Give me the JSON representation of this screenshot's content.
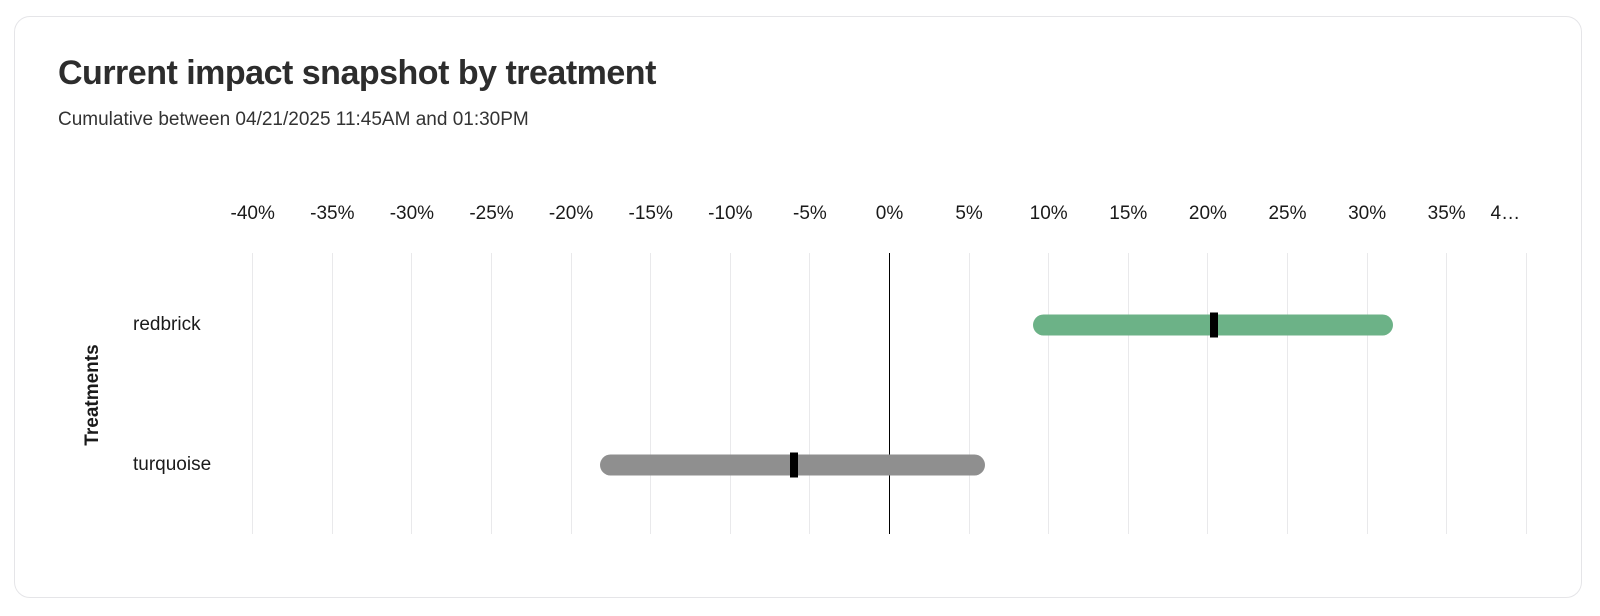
{
  "chart_data": {
    "type": "range_bar",
    "orientation": "horizontal",
    "title": "Current impact snapshot by treatment",
    "subtitle": "Cumulative between 04/21/2025 11:45AM and 01:30PM",
    "ylabel": "Treatments",
    "grid": true,
    "legend": "none",
    "categories": [
      "redbrick",
      "turquoise"
    ],
    "series": [
      {
        "name": "redbrick",
        "low": 9.0,
        "mid": 20.4,
        "high": 31.6,
        "color": "#6cb287",
        "unit": "%"
      },
      {
        "name": "turquoise",
        "low": -18.2,
        "mid": -6.0,
        "high": 6.0,
        "color": "#8f8f8f",
        "unit": "%"
      }
    ],
    "marker_color": "#000000",
    "x_axis": {
      "min": -40,
      "max": 40,
      "tick_step": 5,
      "unit": "%",
      "gridline_color": "#e9e9eb",
      "zero_line_color": "#000000",
      "ticks": [
        {
          "value": -40,
          "label": "-40%"
        },
        {
          "value": -35,
          "label": "-35%"
        },
        {
          "value": -30,
          "label": "-30%"
        },
        {
          "value": -25,
          "label": "-25%"
        },
        {
          "value": -20,
          "label": "-20%"
        },
        {
          "value": -15,
          "label": "-15%"
        },
        {
          "value": -10,
          "label": "-10%"
        },
        {
          "value": -5,
          "label": "-5%"
        },
        {
          "value": 0,
          "label": "0%"
        },
        {
          "value": 5,
          "label": "5%"
        },
        {
          "value": 10,
          "label": "10%"
        },
        {
          "value": 15,
          "label": "15%"
        },
        {
          "value": 20,
          "label": "20%"
        },
        {
          "value": 25,
          "label": "25%"
        },
        {
          "value": 30,
          "label": "30%"
        },
        {
          "value": 35,
          "label": "35%"
        },
        {
          "value": 40,
          "label": "4…",
          "truncated": true
        }
      ]
    }
  }
}
